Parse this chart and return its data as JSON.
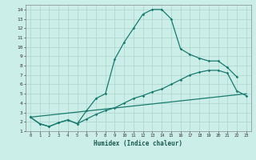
{
  "xlabel": "Humidex (Indice chaleur)",
  "background_color": "#cceee8",
  "grid_color": "#aad4cc",
  "line_color": "#1a7a6e",
  "xlim": [
    -0.5,
    23.5
  ],
  "ylim": [
    1,
    14.5
  ],
  "xticks": [
    0,
    1,
    2,
    3,
    4,
    5,
    6,
    7,
    8,
    9,
    10,
    11,
    12,
    13,
    14,
    15,
    16,
    17,
    18,
    19,
    20,
    21,
    22,
    23
  ],
  "yticks": [
    1,
    2,
    3,
    4,
    5,
    6,
    7,
    8,
    9,
    10,
    11,
    12,
    13,
    14
  ],
  "line1_x": [
    0,
    1,
    2,
    3,
    4,
    5,
    6,
    7,
    8,
    9,
    10,
    11,
    12,
    13,
    14,
    15,
    16,
    17,
    18,
    19,
    20,
    21,
    22
  ],
  "line1_y": [
    2.5,
    1.8,
    1.5,
    1.9,
    2.2,
    1.8,
    3.2,
    4.5,
    5.0,
    8.7,
    10.5,
    12.0,
    13.5,
    14.0,
    14.0,
    13.0,
    9.8,
    9.2,
    8.8,
    8.5,
    8.5,
    7.8,
    6.8
  ],
  "line2_x": [
    0,
    1,
    2,
    3,
    4,
    5,
    6,
    7,
    8,
    9,
    10,
    11,
    12,
    13,
    14,
    15,
    16,
    17,
    18,
    19,
    20,
    21,
    22,
    23
  ],
  "line2_y": [
    2.5,
    1.8,
    1.5,
    1.9,
    2.2,
    1.8,
    2.3,
    2.8,
    3.2,
    3.5,
    4.0,
    4.5,
    4.8,
    5.2,
    5.5,
    6.0,
    6.5,
    7.0,
    7.3,
    7.5,
    7.5,
    7.2,
    5.3,
    4.8
  ],
  "line3_x": [
    0,
    23
  ],
  "line3_y": [
    2.5,
    5.0
  ]
}
